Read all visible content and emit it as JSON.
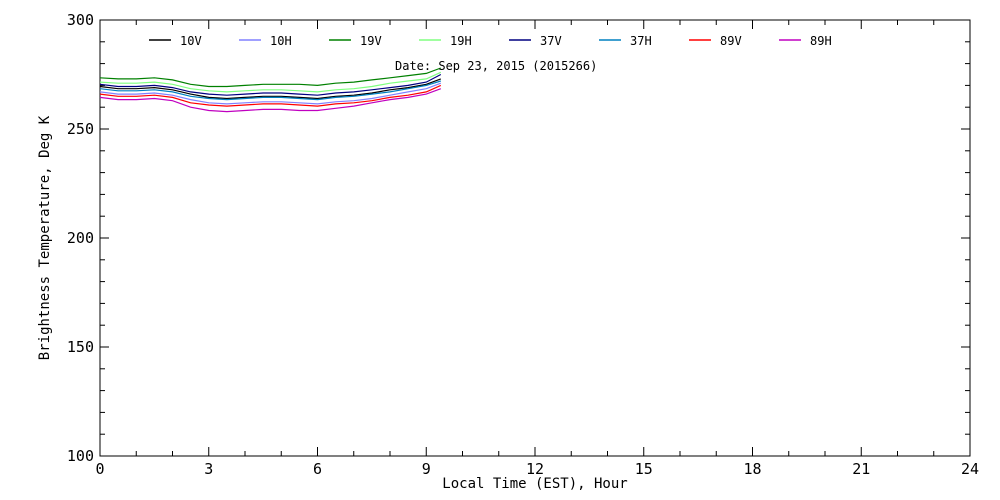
{
  "chart_data": {
    "type": "line",
    "xlabel": "Local Time (EST), Hour",
    "ylabel": "Brightness Temperature, Deg K",
    "annotation": "Date: Sep 23, 2015 (2015266)",
    "xlim": [
      0,
      24
    ],
    "ylim": [
      100,
      300
    ],
    "x_ticks": [
      0,
      3,
      6,
      9,
      12,
      15,
      18,
      21,
      24
    ],
    "y_ticks": [
      100,
      150,
      200,
      250,
      300
    ],
    "x_minor_step": 1,
    "y_minor_step": 10,
    "grid": false,
    "legend_position": "top",
    "x": [
      0,
      0.5,
      1,
      1.5,
      2,
      2.5,
      3,
      3.5,
      4,
      4.5,
      5,
      5.5,
      6,
      6.5,
      7,
      7.5,
      8,
      8.5,
      9,
      9.4
    ],
    "series": [
      {
        "name": "10V",
        "color": "#000000",
        "values": [
          269.5,
          268.5,
          268.5,
          269,
          268,
          266,
          264.5,
          264,
          264.5,
          265,
          265,
          264.5,
          264,
          265,
          265.5,
          266.5,
          268,
          269,
          270.5,
          273
        ]
      },
      {
        "name": "10H",
        "color": "#8080ff",
        "values": [
          267,
          266,
          266,
          266.5,
          265.5,
          263.5,
          262,
          261.5,
          262,
          262.5,
          262.5,
          262,
          261.5,
          262.5,
          263,
          264,
          265.5,
          267,
          268.5,
          271
        ]
      },
      {
        "name": "19V",
        "color": "#008000",
        "values": [
          273.5,
          273,
          273,
          273.5,
          272.5,
          270.5,
          269.5,
          269.5,
          270,
          270.5,
          270.5,
          270.5,
          270,
          271,
          271.5,
          272.5,
          273.5,
          274.5,
          275.5,
          278
        ]
      },
      {
        "name": "19H",
        "color": "#80ff80",
        "values": [
          271.5,
          271,
          271,
          271.5,
          270.5,
          268.5,
          267.5,
          267,
          267.5,
          268,
          268,
          267.5,
          267,
          268,
          268.5,
          269.5,
          271,
          272,
          273,
          276
        ]
      },
      {
        "name": "37V",
        "color": "#000080",
        "values": [
          270.5,
          269.5,
          269.5,
          270,
          269,
          267,
          266,
          265.5,
          266,
          266.5,
          266.5,
          266,
          265.5,
          266.5,
          267,
          268,
          269,
          270,
          271.5,
          275
        ]
      },
      {
        "name": "37H",
        "color": "#0080c0",
        "values": [
          268.5,
          267.5,
          267.5,
          268,
          267,
          265,
          264,
          263.5,
          264,
          264.5,
          264.5,
          264,
          263.5,
          264.5,
          265,
          266,
          267,
          268.5,
          270,
          272
        ]
      },
      {
        "name": "89V",
        "color": "#ff0000",
        "values": [
          266,
          265,
          265,
          265.5,
          264.5,
          262,
          261,
          260.5,
          261,
          261.5,
          261.5,
          261,
          260.5,
          261.5,
          262,
          263,
          264.5,
          265.5,
          267,
          270
        ]
      },
      {
        "name": "89H",
        "color": "#c000c0",
        "values": [
          264.5,
          263.5,
          263.5,
          264,
          263,
          260,
          258.5,
          258,
          258.5,
          259,
          259,
          258.5,
          258.5,
          259.5,
          260.5,
          262,
          263.5,
          264.5,
          266,
          268.5
        ]
      }
    ]
  }
}
